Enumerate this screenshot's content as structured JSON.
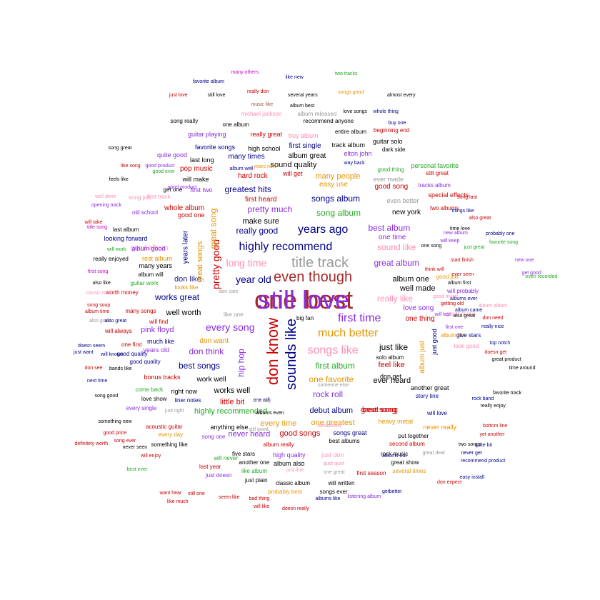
{
  "colors": {
    "darkred": "#a52a2a",
    "red": "#cc0000",
    "blue": "#00008b",
    "navy": "#1e1e8c",
    "purple": "#8a2be2",
    "green": "#22aa22",
    "orange": "#e69500",
    "pink": "#ff8db4",
    "gray": "#999999",
    "black": "#000000",
    "magenta": "#cc00cc",
    "brown": "#a0522d",
    "lightgray": "#bbbbbb"
  },
  "words": [
    {
      "text": "one best",
      "color": "darkred"
    },
    {
      "text": "don know",
      "color": "red"
    },
    {
      "text": "sounds like",
      "color": "blue"
    },
    {
      "text": "even though",
      "color": "darkred"
    },
    {
      "text": "title track",
      "color": "gray"
    },
    {
      "text": "highly recommend",
      "color": "blue"
    },
    {
      "text": "years ago",
      "color": "blue"
    },
    {
      "text": "first time",
      "color": "purple"
    },
    {
      "text": "much better",
      "color": "orange"
    },
    {
      "text": "songs like",
      "color": "pink"
    },
    {
      "text": "every song",
      "color": "purple"
    },
    {
      "text": "pretty good",
      "color": "red"
    },
    {
      "text": "long time",
      "color": "pink"
    },
    {
      "text": "year old",
      "color": "blue"
    },
    {
      "text": "great album",
      "color": "purple"
    },
    {
      "text": "greatest hits",
      "color": "blue"
    },
    {
      "text": "pretty much",
      "color": "purple"
    },
    {
      "text": "really good",
      "color": "blue"
    },
    {
      "text": "songs album",
      "color": "blue"
    },
    {
      "text": "song album",
      "color": "green"
    },
    {
      "text": "best album",
      "color": "purple"
    },
    {
      "text": "sound like",
      "color": "pink"
    },
    {
      "text": "works great",
      "color": "blue"
    },
    {
      "text": "don like",
      "color": "navy"
    },
    {
      "text": "hip hop",
      "color": "purple"
    },
    {
      "text": "don think",
      "color": "purple"
    },
    {
      "text": "just like",
      "color": "black"
    },
    {
      "text": "first album",
      "color": "green"
    },
    {
      "text": "really like",
      "color": "pink"
    },
    {
      "text": "one favorite",
      "color": "orange"
    },
    {
      "text": "rock roll",
      "color": "purple"
    },
    {
      "text": "best songs",
      "color": "blue"
    },
    {
      "text": "highly recommended",
      "color": "green"
    },
    {
      "text": "works well",
      "color": "black"
    },
    {
      "text": "debut album",
      "color": "blue"
    },
    {
      "text": "great song",
      "color": "red"
    },
    {
      "text": "good album",
      "color": "pink"
    },
    {
      "text": "make sure",
      "color": "black"
    },
    {
      "text": "album one",
      "color": "black"
    },
    {
      "text": "well made",
      "color": "black"
    },
    {
      "text": "love song",
      "color": "purple"
    },
    {
      "text": "one thing",
      "color": "red"
    },
    {
      "text": "feel like",
      "color": "red"
    },
    {
      "text": "ever heard",
      "color": "black"
    },
    {
      "text": "album just",
      "color": "orange"
    },
    {
      "text": "just good",
      "color": "blue"
    },
    {
      "text": "every time",
      "color": "orange"
    },
    {
      "text": "one greatest",
      "color": "orange"
    },
    {
      "text": "good songs",
      "color": "red"
    },
    {
      "text": "best song",
      "color": "red"
    },
    {
      "text": "little bit",
      "color": "red"
    },
    {
      "text": "never heard",
      "color": "purple"
    },
    {
      "text": "easy use",
      "color": "orange"
    },
    {
      "text": "many people",
      "color": "orange"
    },
    {
      "text": "first heard",
      "color": "red"
    },
    {
      "text": "new york",
      "color": "black"
    },
    {
      "text": "even better",
      "color": "gray"
    },
    {
      "text": "one time",
      "color": "purple"
    },
    {
      "text": "hard rock",
      "color": "red"
    },
    {
      "text": "sound quality",
      "color": "black"
    },
    {
      "text": "first single",
      "color": "blue"
    },
    {
      "text": "album great",
      "color": "black"
    },
    {
      "text": "many times",
      "color": "blue"
    },
    {
      "text": "pop music",
      "color": "red"
    },
    {
      "text": "whole album",
      "color": "red"
    },
    {
      "text": "great songs",
      "color": "orange"
    },
    {
      "text": "years later",
      "color": "blue"
    },
    {
      "text": "great song",
      "color": "orange"
    },
    {
      "text": "good song",
      "color": "red"
    },
    {
      "text": "pink floyd",
      "color": "purple"
    },
    {
      "text": "well worth",
      "color": "black"
    },
    {
      "text": "look good",
      "color": "pink"
    },
    {
      "text": "good job",
      "color": "orange"
    },
    {
      "text": "album like",
      "color": "orange"
    },
    {
      "text": "give stars",
      "color": "blue"
    },
    {
      "text": "special effects",
      "color": "red"
    },
    {
      "text": "two albums",
      "color": "red"
    },
    {
      "text": "tracks album",
      "color": "purple"
    },
    {
      "text": "still great",
      "color": "red"
    },
    {
      "text": "personal favorite",
      "color": "green"
    },
    {
      "text": "good thing",
      "color": "green"
    },
    {
      "text": "ever made",
      "color": "gray"
    },
    {
      "text": "will get",
      "color": "red"
    },
    {
      "text": "elton john",
      "color": "purple"
    },
    {
      "text": "track album",
      "color": "black"
    },
    {
      "text": "guitar solo",
      "color": "black"
    },
    {
      "text": "dark side",
      "color": "black"
    },
    {
      "text": "high school",
      "color": "black"
    },
    {
      "text": "favorite songs",
      "color": "blue"
    },
    {
      "text": "guitar playing",
      "color": "purple"
    },
    {
      "text": "really great",
      "color": "red"
    },
    {
      "text": "buy album",
      "color": "pink"
    },
    {
      "text": "entire album",
      "color": "black"
    },
    {
      "text": "beginning end",
      "color": "red"
    },
    {
      "text": "one album",
      "color": "black"
    },
    {
      "text": "song really",
      "color": "black"
    },
    {
      "text": "recommend anyone",
      "color": "black"
    },
    {
      "text": "michael jackson",
      "color": "pink"
    },
    {
      "text": "album released",
      "color": "gray"
    },
    {
      "text": "quite good",
      "color": "purple"
    },
    {
      "text": "last long",
      "color": "black"
    },
    {
      "text": "will make",
      "color": "black"
    },
    {
      "text": "get one",
      "color": "black"
    },
    {
      "text": "first two",
      "color": "purple"
    },
    {
      "text": "good one",
      "color": "red"
    },
    {
      "text": "old school",
      "color": "purple"
    },
    {
      "text": "last album",
      "color": "black"
    },
    {
      "text": "looking forward",
      "color": "blue"
    },
    {
      "text": "album good",
      "color": "purple"
    },
    {
      "text": "really enjoyed",
      "color": "black"
    },
    {
      "text": "rest album",
      "color": "orange"
    },
    {
      "text": "many years",
      "color": "black"
    },
    {
      "text": "looks like",
      "color": "orange"
    },
    {
      "text": "worth money",
      "color": "red"
    },
    {
      "text": "guitar work",
      "color": "green"
    },
    {
      "text": "album will",
      "color": "black"
    },
    {
      "text": "many songs",
      "color": "red"
    },
    {
      "text": "will always",
      "color": "red"
    },
    {
      "text": "will find",
      "color": "red"
    },
    {
      "text": "much like",
      "color": "blue"
    },
    {
      "text": "years old",
      "color": "purple"
    },
    {
      "text": "good quality",
      "color": "blue"
    },
    {
      "text": "bonus tracks",
      "color": "red"
    },
    {
      "text": "right now",
      "color": "black"
    },
    {
      "text": "love show",
      "color": "black"
    },
    {
      "text": "come back",
      "color": "green"
    },
    {
      "text": "liner notes",
      "color": "blue"
    },
    {
      "text": "every single",
      "color": "purple"
    },
    {
      "text": "work well",
      "color": "black"
    },
    {
      "text": "don want",
      "color": "orange"
    },
    {
      "text": "solo album",
      "color": "black"
    },
    {
      "text": "don get",
      "color": "black"
    },
    {
      "text": "another great",
      "color": "black"
    },
    {
      "text": "story line",
      "color": "blue"
    },
    {
      "text": "will love",
      "color": "blue"
    },
    {
      "text": "never really",
      "color": "orange"
    },
    {
      "text": "heavy metal",
      "color": "orange"
    },
    {
      "text": "put together",
      "color": "black"
    },
    {
      "text": "second album",
      "color": "red"
    },
    {
      "text": "rock music",
      "color": "black"
    },
    {
      "text": "great show",
      "color": "black"
    },
    {
      "text": "several times",
      "color": "orange"
    },
    {
      "text": "songs great",
      "color": "blue"
    },
    {
      "text": "best albums",
      "color": "black"
    },
    {
      "text": "just don",
      "color": "pink"
    },
    {
      "text": "high quality",
      "color": "purple"
    },
    {
      "text": "album really",
      "color": "red"
    },
    {
      "text": "another one",
      "color": "black"
    },
    {
      "text": "five stars",
      "color": "black"
    },
    {
      "text": "album also",
      "color": "black"
    },
    {
      "text": "like album",
      "color": "green"
    },
    {
      "text": "will written",
      "color": "black"
    },
    {
      "text": "first season",
      "color": "red"
    },
    {
      "text": "just plain",
      "color": "black"
    },
    {
      "text": "probably best",
      "color": "orange"
    },
    {
      "text": "classic album",
      "color": "black"
    },
    {
      "text": "songs ever",
      "color": "black"
    },
    {
      "text": "just doesn",
      "color": "purple"
    },
    {
      "text": "last year",
      "color": "red"
    },
    {
      "text": "something like",
      "color": "black"
    },
    {
      "text": "acoustic guitar",
      "color": "red"
    },
    {
      "text": "anything else",
      "color": "black"
    },
    {
      "text": "will never",
      "color": "green"
    },
    {
      "text": "every day",
      "color": "orange"
    },
    {
      "text": "song one",
      "color": "purple"
    },
    {
      "text": "two songs",
      "color": "black"
    },
    {
      "text": "album came",
      "color": "blue"
    },
    {
      "text": "albums ever",
      "color": "blue"
    },
    {
      "text": "album first",
      "color": "black"
    },
    {
      "text": "start finish",
      "color": "red"
    },
    {
      "text": "ever seen",
      "color": "red"
    },
    {
      "text": "will probably",
      "color": "purple"
    },
    {
      "text": "great music",
      "color": "pink"
    },
    {
      "text": "first track",
      "color": "pink"
    },
    {
      "text": "song just",
      "color": "pink"
    },
    {
      "text": "favorite album",
      "color": "blue"
    },
    {
      "text": "many others",
      "color": "magenta"
    },
    {
      "text": "like new",
      "color": "blue"
    },
    {
      "text": "two tracks",
      "color": "green"
    },
    {
      "text": "just love",
      "color": "red"
    },
    {
      "text": "still love",
      "color": "black"
    },
    {
      "text": "really don",
      "color": "red"
    },
    {
      "text": "several years",
      "color": "black"
    },
    {
      "text": "songs good",
      "color": "orange"
    },
    {
      "text": "almost every",
      "color": "black"
    },
    {
      "text": "music like",
      "color": "brown"
    },
    {
      "text": "album best",
      "color": "black"
    },
    {
      "text": "love songs",
      "color": "black"
    },
    {
      "text": "whole thing",
      "color": "blue"
    },
    {
      "text": "buy one",
      "color": "blue"
    },
    {
      "text": "song great",
      "color": "black"
    },
    {
      "text": "like song",
      "color": "red"
    },
    {
      "text": "good product",
      "color": "purple"
    },
    {
      "text": "album well",
      "color": "blue"
    },
    {
      "text": "years now",
      "color": "orange"
    },
    {
      "text": "way back",
      "color": "blue"
    },
    {
      "text": "feels like",
      "color": "black"
    },
    {
      "text": "well done",
      "color": "pink"
    },
    {
      "text": "opening track",
      "color": "purple"
    },
    {
      "text": "will take",
      "color": "red"
    },
    {
      "text": "title song",
      "color": "magenta"
    },
    {
      "text": "will work",
      "color": "green"
    },
    {
      "text": "first song",
      "color": "magenta"
    },
    {
      "text": "also like",
      "color": "black"
    },
    {
      "text": "classic rock",
      "color": "pink"
    },
    {
      "text": "song soup",
      "color": "red"
    },
    {
      "text": "album time",
      "color": "red"
    },
    {
      "text": "also good",
      "color": "gray"
    },
    {
      "text": "also great",
      "color": "blue"
    },
    {
      "text": "don need",
      "color": "red"
    },
    {
      "text": "album album",
      "color": "pink"
    },
    {
      "text": "really nice",
      "color": "blue"
    },
    {
      "text": "top notch",
      "color": "blue"
    },
    {
      "text": "doesn get",
      "color": "red"
    },
    {
      "text": "great product",
      "color": "black"
    },
    {
      "text": "time around",
      "color": "black"
    },
    {
      "text": "favorite track",
      "color": "black"
    },
    {
      "text": "rock band",
      "color": "blue"
    },
    {
      "text": "really enjoy",
      "color": "black"
    },
    {
      "text": "bottom line",
      "color": "red"
    },
    {
      "text": "yet another",
      "color": "red"
    },
    {
      "text": "quite bit",
      "color": "blue"
    },
    {
      "text": "never get",
      "color": "blue"
    },
    {
      "text": "recommend product",
      "color": "blue"
    },
    {
      "text": "easy install",
      "color": "blue"
    },
    {
      "text": "don expect",
      "color": "red"
    },
    {
      "text": "getbetter",
      "color": "blue"
    },
    {
      "text": "listening album",
      "color": "purple"
    },
    {
      "text": "albums like",
      "color": "blue"
    },
    {
      "text": "doesn really",
      "color": "red"
    },
    {
      "text": "will like",
      "color": "red"
    },
    {
      "text": "bad thing",
      "color": "red"
    },
    {
      "text": "seem like",
      "color": "red"
    },
    {
      "text": "still one",
      "color": "red"
    },
    {
      "text": "like much",
      "color": "red"
    },
    {
      "text": "want hear",
      "color": "red"
    },
    {
      "text": "will enjoy",
      "color": "red"
    },
    {
      "text": "best ever",
      "color": "green"
    },
    {
      "text": "never seen",
      "color": "black"
    },
    {
      "text": "song ever",
      "color": "red"
    },
    {
      "text": "good price",
      "color": "red"
    },
    {
      "text": "something new",
      "color": "black"
    },
    {
      "text": "definitely worth",
      "color": "red"
    },
    {
      "text": "just want",
      "color": "blue"
    },
    {
      "text": "don see",
      "color": "red"
    },
    {
      "text": "doesn seem",
      "color": "blue"
    },
    {
      "text": "will known",
      "color": "blue"
    },
    {
      "text": "next time",
      "color": "blue"
    },
    {
      "text": "song good",
      "color": "black"
    },
    {
      "text": "bands like",
      "color": "black"
    },
    {
      "text": "one will",
      "color": "blue"
    },
    {
      "text": "albums even",
      "color": "black"
    },
    {
      "text": "still good",
      "color": "gray"
    },
    {
      "text": "west coast",
      "color": "pink"
    },
    {
      "text": "quot quot",
      "color": "pink"
    },
    {
      "text": "like one",
      "color": "gray"
    },
    {
      "text": "big fan",
      "color": "black"
    },
    {
      "text": "don care",
      "color": "gray"
    },
    {
      "text": "one first",
      "color": "red"
    },
    {
      "text": "good quality",
      "color": "blue"
    },
    {
      "text": "just right",
      "color": "gray"
    },
    {
      "text": "one day",
      "color": "gray"
    },
    {
      "text": "someone else",
      "color": "gray"
    },
    {
      "text": "albums out",
      "color": "blue"
    },
    {
      "text": "one great",
      "color": "gray"
    },
    {
      "text": "just fine",
      "color": "pink"
    },
    {
      "text": "great deal",
      "color": "gray"
    },
    {
      "text": "also great",
      "color": "black"
    },
    {
      "text": "one song",
      "color": "black"
    },
    {
      "text": "think will",
      "color": "red"
    },
    {
      "text": "will keep",
      "color": "purple"
    },
    {
      "text": "new album",
      "color": "purple"
    },
    {
      "text": "time love",
      "color": "black"
    },
    {
      "text": "just great",
      "color": "green"
    },
    {
      "text": "good music",
      "color": "pink"
    },
    {
      "text": "getting old",
      "color": "red"
    },
    {
      "text": "will last",
      "color": "purple"
    },
    {
      "text": "first one",
      "color": "purple"
    },
    {
      "text": "new one",
      "color": "purple"
    },
    {
      "text": "get good",
      "color": "purple"
    },
    {
      "text": "even recorded",
      "color": "green"
    },
    {
      "text": "things like",
      "color": "blue"
    },
    {
      "text": "probably one",
      "color": "blue"
    },
    {
      "text": "favorite song",
      "color": "green"
    },
    {
      "text": "also great",
      "color": "red"
    },
    {
      "text": "song last",
      "color": "red"
    },
    {
      "text": "good ever",
      "color": "green"
    },
    {
      "text": "good product",
      "color": "purple"
    },
    {
      "text": "still love",
      "color": "purple"
    }
  ]
}
